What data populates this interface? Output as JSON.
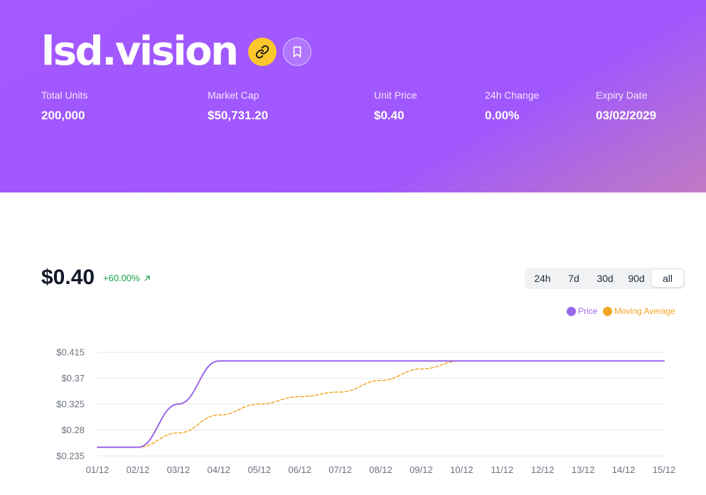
{
  "header": {
    "title": "lsd.vision",
    "stats": [
      {
        "label": "Total Units",
        "value": "200,000"
      },
      {
        "label": "Market Cap",
        "value": "$50,731.20"
      },
      {
        "label": "Unit Price",
        "value": "$0.40"
      },
      {
        "label": "24h Change",
        "value": "0.00%"
      },
      {
        "label": "Expiry Date",
        "value": "03/02/2029"
      }
    ]
  },
  "price_panel": {
    "price": "$0.40",
    "change": "+60.00%",
    "ranges": [
      "24h",
      "7d",
      "30d",
      "90d",
      "all"
    ],
    "active_range": "all"
  },
  "colors": {
    "hero": "#a259ff",
    "price_line": "#9b67e8",
    "moving_average": "#f2a524",
    "positive": "#16a34a"
  },
  "chart_data": {
    "type": "line",
    "legend": [
      "Price",
      "Moving Average"
    ],
    "x": [
      "01/12",
      "02/12",
      "03/12",
      "04/12",
      "05/12",
      "06/12",
      "07/12",
      "08/12",
      "09/12",
      "10/12",
      "11/12",
      "12/12",
      "13/12",
      "14/12",
      "15/12"
    ],
    "y_ticks": [
      "$0.415",
      "$0.37",
      "$0.325",
      "$0.28",
      "$0.235"
    ],
    "ylim": [
      0.235,
      0.415
    ],
    "series": [
      {
        "name": "Price",
        "values": [
          0.25,
          0.25,
          0.325,
          0.4,
          0.4,
          0.4,
          0.4,
          0.4,
          0.4,
          0.4,
          0.4,
          0.4,
          0.4,
          0.4,
          0.4
        ]
      },
      {
        "name": "Moving Average",
        "values": [
          0.25,
          0.25,
          0.275,
          0.306,
          0.325,
          0.338,
          0.346,
          0.366,
          0.386,
          0.4,
          0.4,
          0.4,
          0.4,
          0.4,
          0.4
        ]
      }
    ]
  }
}
